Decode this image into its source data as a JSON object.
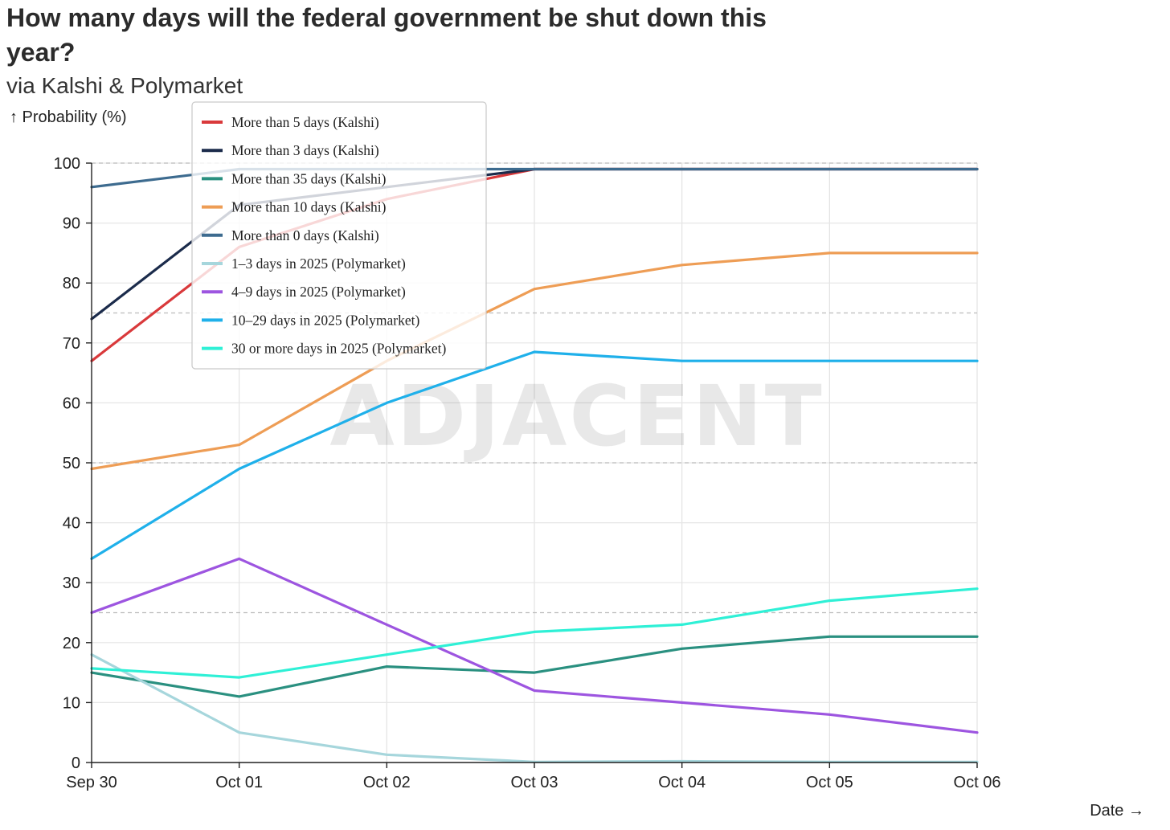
{
  "chart_data": {
    "type": "line",
    "title": "How many days will the federal government be shut down this year?",
    "subtitle": "via Kalshi & Polymarket",
    "ylabel": "↑ Probability (%)",
    "xlabel": "Date →",
    "x": [
      "Sep 30",
      "Oct 01",
      "Oct 02",
      "Oct 03",
      "Oct 04",
      "Oct 05",
      "Oct 06"
    ],
    "ylim": [
      0,
      100
    ],
    "yticks": [
      0,
      10,
      20,
      30,
      40,
      50,
      60,
      70,
      80,
      90,
      100
    ],
    "grid": true,
    "legend_position": "top-left",
    "watermark": "ADJACENT",
    "series": [
      {
        "name": "More than 5 days (Kalshi)",
        "color": "#d9393b",
        "values": [
          67,
          86,
          94,
          99,
          99,
          99,
          99
        ]
      },
      {
        "name": "More than 3 days (Kalshi)",
        "color": "#1b2b4b",
        "values": [
          74,
          93,
          96,
          99,
          99,
          99,
          99
        ]
      },
      {
        "name": "More than 35 days (Kalshi)",
        "color": "#2a9080",
        "values": [
          15,
          11,
          16,
          15,
          19,
          21,
          21
        ]
      },
      {
        "name": "More than 10 days (Kalshi)",
        "color": "#ee9d55",
        "values": [
          49,
          53,
          67,
          79,
          83,
          85,
          85
        ]
      },
      {
        "name": "More than 0 days (Kalshi)",
        "color": "#3d6b8f",
        "values": [
          96,
          99,
          99,
          99,
          99,
          99,
          99
        ]
      },
      {
        "name": "1–3 days in 2025 (Polymarket)",
        "color": "#a6d6dc",
        "values": [
          18,
          5,
          1.3,
          0.1,
          0.2,
          0.1,
          0.1
        ]
      },
      {
        "name": "4–9 days in 2025 (Polymarket)",
        "color": "#9d55e0",
        "values": [
          25,
          34,
          23,
          12,
          10,
          8,
          5
        ]
      },
      {
        "name": "10–29 days in 2025 (Polymarket)",
        "color": "#1fb0ea",
        "values": [
          34,
          49,
          60,
          68.5,
          67,
          67,
          67
        ]
      },
      {
        "name": "30 or more days in 2025 (Polymarket)",
        "color": "#2ff0d6",
        "values": [
          15.7,
          14.2,
          18,
          21.8,
          23,
          27,
          29
        ]
      }
    ]
  }
}
